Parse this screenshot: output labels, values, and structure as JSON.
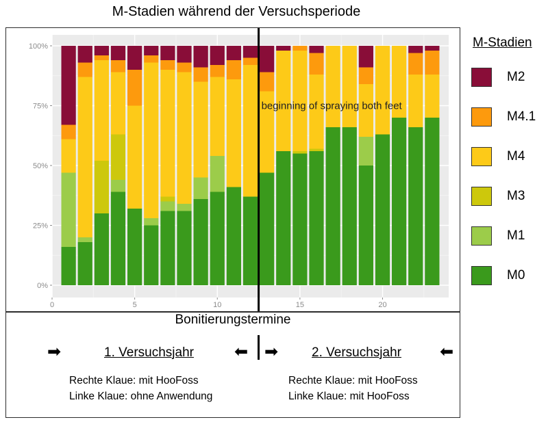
{
  "title": "M-Stadien während der Versuchsperiode",
  "legend_title": "M-Stadien",
  "annotation": "beginning of spraying both feet",
  "bottom": {
    "xlabel": "Bonitierungstermine",
    "year1": {
      "title": "1. Versuchsjahr",
      "note1": "Rechte Klaue: mit HooFoss",
      "note2": "Linke Klaue: ohne Anwendung"
    },
    "year2": {
      "title": "2. Versuchsjahr",
      "note1": "Rechte Klaue: mit HooFoss",
      "note2": "Linke Klaue: mit HooFoss"
    },
    "arrows": {
      "right": "➡",
      "left": "⬅"
    }
  },
  "chart_data": {
    "type": "bar",
    "stacked": true,
    "normalized": true,
    "x": [
      1,
      2,
      3,
      4,
      5,
      6,
      7,
      8,
      9,
      10,
      11,
      12,
      13,
      14,
      15,
      16,
      17,
      18,
      19,
      20,
      21,
      22,
      23
    ],
    "x_ticks": [
      0,
      5,
      10,
      15,
      20
    ],
    "xlim": [
      0,
      24
    ],
    "ylim": [
      0,
      1
    ],
    "y_ticks": [
      {
        "value": 0,
        "label": "0%"
      },
      {
        "value": 0.25,
        "label": "25%"
      },
      {
        "value": 0.5,
        "label": "50%"
      },
      {
        "value": 0.75,
        "label": "75%"
      },
      {
        "value": 1,
        "label": "100%"
      }
    ],
    "grid": true,
    "vline": {
      "x": 12.5,
      "label": "beginning of spraying both feet"
    },
    "legend_position": "right",
    "series": [
      {
        "name": "M0",
        "color": "#3a9a1c",
        "values": [
          16,
          18,
          30,
          39,
          32,
          25,
          31,
          31,
          36,
          39,
          41,
          37,
          47,
          56,
          55,
          56,
          66,
          66,
          50,
          63,
          70,
          66,
          70
        ]
      },
      {
        "name": "M1",
        "color": "#9ccc4a",
        "values": [
          31,
          2,
          0,
          5,
          0,
          3,
          4,
          3,
          9,
          15,
          0,
          0,
          0,
          0,
          0,
          0,
          0,
          0,
          12,
          0,
          0,
          0,
          0
        ]
      },
      {
        "name": "M3",
        "color": "#cdc80c",
        "values": [
          0,
          0,
          22,
          19,
          0,
          0,
          2,
          0,
          0,
          0,
          0,
          0,
          0,
          0,
          1,
          1,
          0,
          0,
          0,
          0,
          0,
          0,
          0
        ]
      },
      {
        "name": "M4",
        "color": "#fdca18",
        "values": [
          14,
          67,
          42,
          26,
          43,
          65,
          53,
          55,
          40,
          33,
          45,
          55,
          34,
          42,
          42,
          31,
          34,
          34,
          22,
          37,
          30,
          22,
          18
        ]
      },
      {
        "name": "M4.1",
        "color": "#fd9a0d",
        "values": [
          6,
          6,
          2,
          5,
          15,
          3,
          4,
          4,
          6,
          5,
          8,
          3,
          8,
          0,
          2,
          9,
          0,
          0,
          7,
          0,
          0,
          9,
          10
        ]
      },
      {
        "name": "M2",
        "color": "#890d38",
        "values": [
          33,
          7,
          4,
          6,
          10,
          4,
          6,
          7,
          9,
          8,
          6,
          5,
          11,
          2,
          0,
          3,
          0,
          0,
          9,
          0,
          0,
          3,
          2
        ]
      }
    ]
  }
}
